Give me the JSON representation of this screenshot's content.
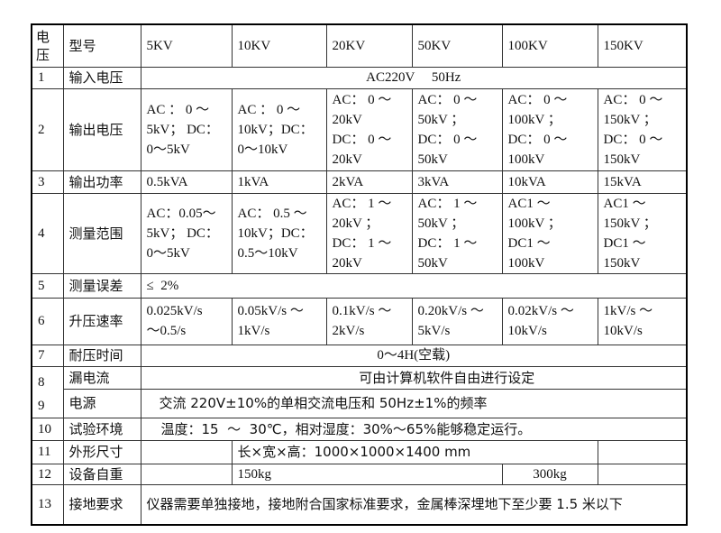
{
  "header": {
    "col0": "电\n压",
    "col1": "型号",
    "models": [
      "5KV",
      "10KV",
      "20KV",
      "50KV",
      "100KV",
      "150KV"
    ]
  },
  "rows": {
    "r1": {
      "num": "1",
      "label": "输入电压",
      "value": "AC220V     50Hz"
    },
    "r2": {
      "num": "2",
      "label": "输出电压",
      "values": [
        "AC ：  0 ～\n5kV；  DC：\n0～5kV",
        "AC  ：   0 ～\n10kV；DC：\n0～10kV",
        "AC：  0 ～\n20kV\nDC：  0 ～\n20kV",
        "AC：   0 ～\n50kV        ；\nDC：   0 ～\n50kV",
        "AC：    0 ～\n100kV      ；\nDC：    0 ～\n100kV",
        "AC：  0 ～\n150kV    ；\nDC：  0 ～\n150kV"
      ]
    },
    "r3": {
      "num": "3",
      "label": "输出功率",
      "values": [
        "0.5kVA",
        "1kVA",
        "2kVA",
        "3kVA",
        "10kVA",
        "15kVA"
      ]
    },
    "r4": {
      "num": "4",
      "label": "测量范围",
      "values": [
        "AC：0.05～\n5kV；  DC：\n0～5kV",
        "AC：  0.5 ～\n10kV；DC：\n0.5～10kV",
        "AC：  1 ～\n20kV      ；\nDC：  1 ～\n20kV",
        "AC：  1 ～\n50kV        ；\nDC：  1 ～\n50kV",
        "AC1          ～\n100kV      ；\nDC1          ～\n100kV",
        "AC1          ～\n150kV    ；\nDC1          ～\n150kV"
      ]
    },
    "r5": {
      "num": "5",
      "label": "测量误差",
      "value": "≤  2%"
    },
    "r6": {
      "num": "6",
      "label": "升压速率",
      "values": [
        "0.025kV/s\n～0.5/s",
        "0.05kV/s  ～\n1kV/s",
        "0.1kV/s  ～\n2kV/s",
        "0.20kV/s ～\n5kV/s",
        "0.02kV/s  ～\n10kV/s",
        "1kV/s        ～\n10kV/s"
      ]
    },
    "r7": {
      "num": "7",
      "label": "耐压时间",
      "value": "0～4H(空载)"
    },
    "r8": {
      "num": "8",
      "label": "漏电流",
      "value": "可由计算机软件自由进行设定"
    },
    "r9": {
      "num": "9",
      "label": "电源",
      "value": "交流 220V±10%的单相交流电压和 50Hz±1%的频率"
    },
    "r10": {
      "num": "10",
      "label": "试验环境",
      "value": "温度：15  ～  30℃，相对湿度：30%～65%能够稳定运行。"
    },
    "r11": {
      "num": "11",
      "label": "外形尺寸",
      "value": "长×宽×高：1000×1000×1400 mm"
    },
    "r12": {
      "num": "12",
      "label": "设备自重",
      "value_a": "150kg",
      "value_b": "300kg"
    },
    "r13": {
      "num": "13",
      "label": "接地要求",
      "value": "仪器需要单独接地，接地附合国家标准要求，金属棒深埋地下至少要 1.5 米以下"
    }
  }
}
